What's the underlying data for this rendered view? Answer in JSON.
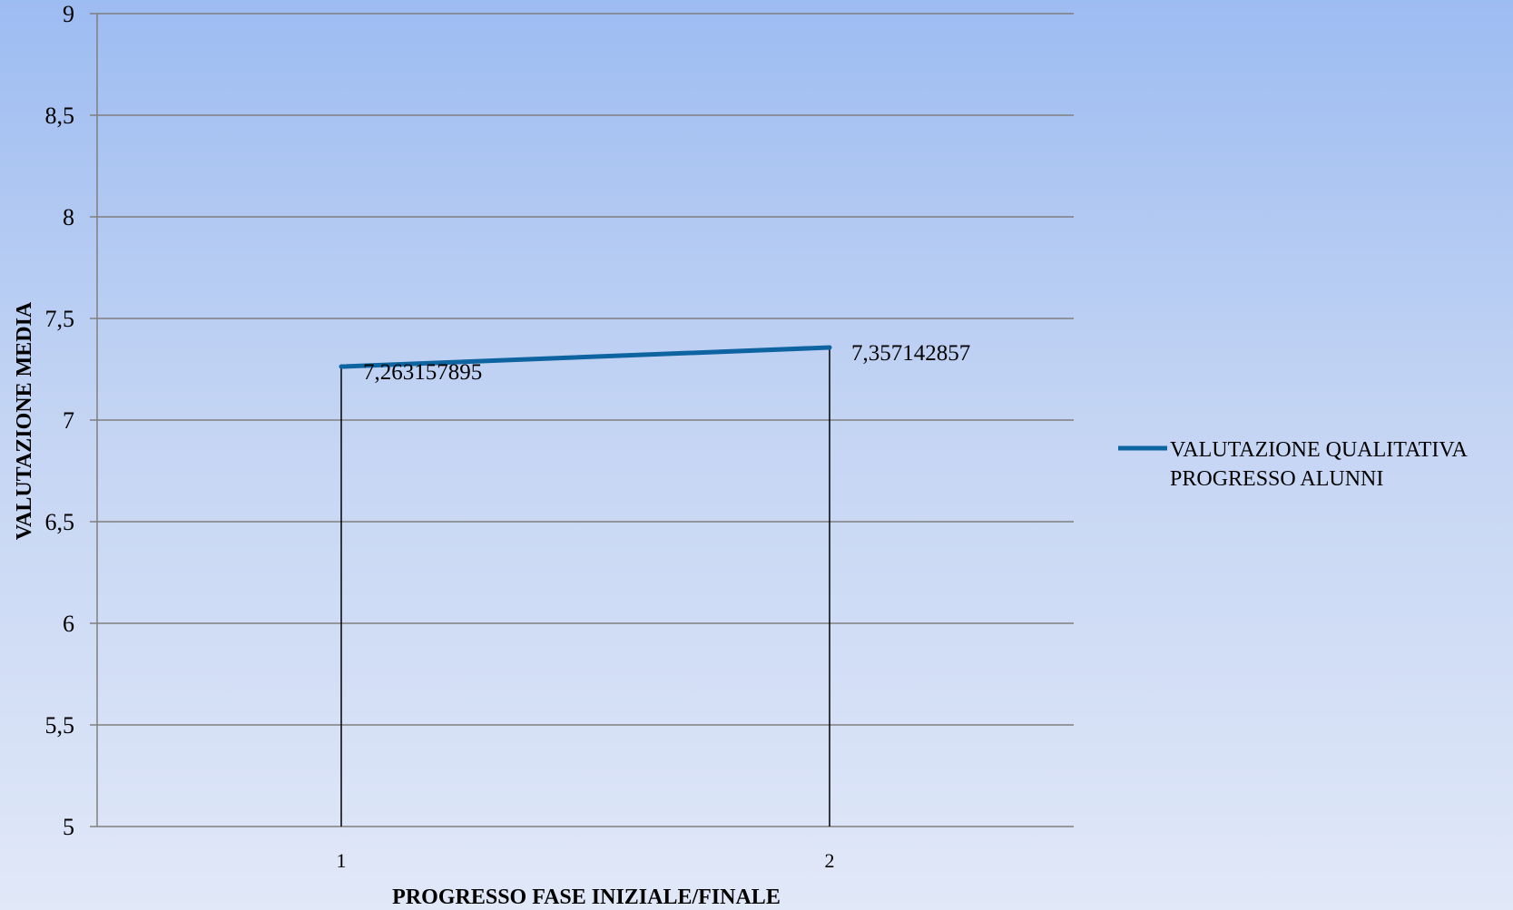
{
  "colors": {
    "series": "#0e64a0",
    "grid": "#7f7f7f",
    "drop": "#000000"
  },
  "chart_data": {
    "type": "line",
    "x": [
      "1",
      "2"
    ],
    "series": [
      {
        "name": "VALUTAZIONE QUALITATIVA PROGRESSO ALUNNI",
        "legend_lines": [
          "VALUTAZIONE QUALITATIVA",
          "PROGRESSO ALUNNI"
        ],
        "values": [
          7.2631578947,
          7.3571428571
        ],
        "data_labels": [
          "7,263157895",
          "7,357142857"
        ]
      }
    ],
    "xlabel": "PROGRESSO FASE INIZIALE/FINALE",
    "ylabel": "VALUTAZIONE MEDIA",
    "ylim": [
      5,
      9
    ],
    "yticks": [
      5,
      5.5,
      6,
      6.5,
      7,
      7.5,
      8,
      8.5,
      9
    ],
    "ytick_labels": [
      "5",
      "5,5",
      "6",
      "6,5",
      "7",
      "7,5",
      "8",
      "8,5",
      "9"
    ],
    "grid": true,
    "drop_lines": true,
    "legend_position": "right"
  }
}
